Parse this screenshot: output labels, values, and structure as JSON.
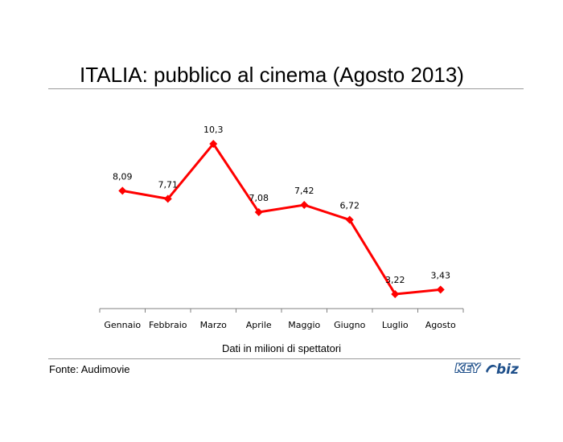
{
  "title": "ITALIA: pubblico al cinema (Agosto 2013)",
  "caption": "Dati in milioni di spettatori",
  "source": "Fonte: Audimovie",
  "logo": {
    "part1": "KEY",
    "part2": "biz"
  },
  "colors": {
    "line": "#ff0000",
    "axis": "#808080",
    "rule": "#9a9a9a",
    "logo": "#1e4f8a"
  },
  "chart_data": {
    "type": "line",
    "title": "ITALIA: pubblico al cinema (Agosto 2013)",
    "xlabel": "Dati in milioni di spettatori",
    "ylabel": "",
    "categories": [
      "Gennaio",
      "Febbraio",
      "Marzo",
      "Aprile",
      "Maggio",
      "Giugno",
      "Luglio",
      "Agosto"
    ],
    "values": [
      8.09,
      7.71,
      10.3,
      7.08,
      7.42,
      6.72,
      3.22,
      3.43
    ],
    "data_labels": [
      "8,09",
      "7,71",
      "10,3",
      "7,08",
      "7,42",
      "6,72",
      "3,22",
      "3,43"
    ],
    "ylim": [
      0,
      12
    ],
    "grid": false,
    "legend": "none"
  }
}
